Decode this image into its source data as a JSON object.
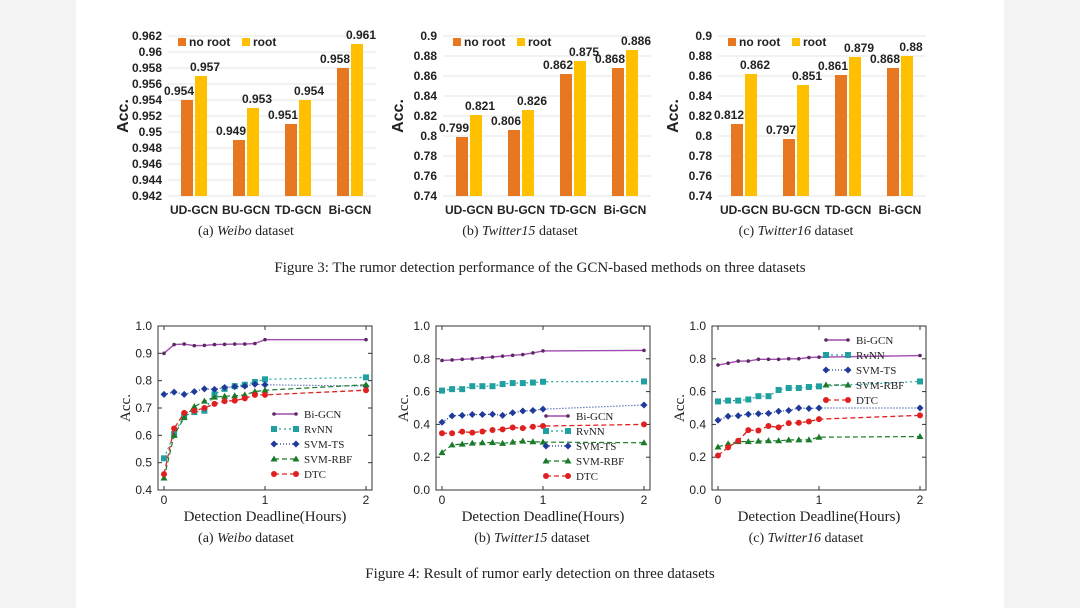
{
  "figure3": {
    "caption": "Figure 3: The rumor detection performance of the GCN-based methods on three datasets",
    "subcaptions": [
      {
        "prefix": "(a) ",
        "name": "Weibo",
        "suffix": " dataset"
      },
      {
        "prefix": "(b) ",
        "name": "Twitter15",
        "suffix": " dataset"
      },
      {
        "prefix": "(c) ",
        "name": "Twitter16",
        "suffix": " dataset"
      }
    ]
  },
  "figure4": {
    "caption": "Figure 4: Result of rumor early detection on three datasets",
    "subcaptions": [
      {
        "prefix": "(a) ",
        "name": "Weibo",
        "suffix": " dataset"
      },
      {
        "prefix": "(b) ",
        "name": "Twitter15",
        "suffix": " dataset"
      },
      {
        "prefix": "(c) ",
        "name": "Twitter16",
        "suffix": " dataset"
      }
    ]
  },
  "colors": {
    "no_root": "#e87722",
    "root": "#ffc000",
    "bigcn": "#a24bb0",
    "rvnn": "#20a0a0",
    "svmts": "#1f3b9a",
    "svmrbf": "#1a7a2a",
    "dtc": "#e02020"
  },
  "chart_data": [
    {
      "type": "bar",
      "title": "(a) Weibo dataset",
      "ylabel": "Acc.",
      "xlabel": "",
      "categories": [
        "UD-GCN",
        "BU-GCN",
        "TD-GCN",
        "Bi-GCN"
      ],
      "ylim": [
        0.942,
        0.962
      ],
      "yticks": [
        "0.942",
        "0.944",
        "0.946",
        "0.948",
        "0.95",
        "0.952",
        "0.954",
        "0.956",
        "0.958",
        "0.96",
        "0.962"
      ],
      "legend": "top-left",
      "series": [
        {
          "name": "no root",
          "values": [
            0.954,
            0.949,
            0.951,
            0.958
          ],
          "labels": [
            "0.954",
            "0.949",
            "0.951",
            "0.958"
          ]
        },
        {
          "name": "root",
          "values": [
            0.957,
            0.953,
            0.954,
            0.961
          ],
          "labels": [
            "0.957",
            "0.953",
            "0.954",
            "0.961"
          ]
        }
      ]
    },
    {
      "type": "bar",
      "title": "(b) Twitter15 dataset",
      "ylabel": "Acc.",
      "xlabel": "",
      "categories": [
        "UD-GCN",
        "BU-GCN",
        "TD-GCN",
        "Bi-GCN"
      ],
      "ylim": [
        0.74,
        0.9
      ],
      "yticks": [
        "0.74",
        "0.76",
        "0.78",
        "0.8",
        "0.82",
        "0.84",
        "0.86",
        "0.88",
        "0.9"
      ],
      "legend": "top-left",
      "series": [
        {
          "name": "no root",
          "values": [
            0.799,
            0.806,
            0.862,
            0.868
          ],
          "labels": [
            "0.799",
            "0.806",
            "0.862",
            "0.868"
          ]
        },
        {
          "name": "root",
          "values": [
            0.821,
            0.826,
            0.875,
            0.886
          ],
          "labels": [
            "0.821",
            "0.826",
            "0.875",
            "0.886"
          ]
        }
      ]
    },
    {
      "type": "bar",
      "title": "(c) Twitter16 dataset",
      "ylabel": "Acc.",
      "xlabel": "",
      "categories": [
        "UD-GCN",
        "BU-GCN",
        "TD-GCN",
        "Bi-GCN"
      ],
      "ylim": [
        0.74,
        0.9
      ],
      "yticks": [
        "0.74",
        "0.76",
        "0.78",
        "0.8",
        "0.82",
        "0.84",
        "0.86",
        "0.88",
        "0.9"
      ],
      "legend": "top-left",
      "series": [
        {
          "name": "no root",
          "values": [
            0.812,
            0.797,
            0.861,
            0.868
          ],
          "labels": [
            "0.812",
            "0.797",
            "0.861",
            "0.868"
          ]
        },
        {
          "name": "root",
          "values": [
            0.862,
            0.851,
            0.879,
            0.88
          ],
          "labels": [
            "0.862",
            "0.851",
            "0.879",
            "0.88"
          ]
        }
      ]
    },
    {
      "type": "line",
      "title": "(a) Weibo dataset",
      "xlabel": "Detection Deadline(Hours)",
      "ylabel": "Acc.",
      "xlim": [
        0,
        2
      ],
      "ylim": [
        0.4,
        1.0
      ],
      "xticks": [
        "0",
        "1",
        "2"
      ],
      "yticks": [
        "0.4",
        "0.5",
        "0.6",
        "0.7",
        "0.8",
        "0.9",
        "1.0"
      ],
      "legend": "center-right",
      "x": [
        0,
        0.1,
        0.2,
        0.3,
        0.4,
        0.5,
        0.6,
        0.7,
        0.8,
        0.9,
        1.0,
        2.0
      ],
      "series": [
        {
          "name": "Bi-GCN",
          "values": [
            0.9,
            0.932,
            0.934,
            0.928,
            0.929,
            0.932,
            0.933,
            0.934,
            0.934,
            0.936,
            0.95,
            0.95
          ]
        },
        {
          "name": "RvNN",
          "values": [
            0.516,
            0.605,
            0.672,
            0.685,
            0.69,
            0.75,
            0.77,
            0.78,
            0.785,
            0.795,
            0.805,
            0.812
          ]
        },
        {
          "name": "SVM-TS",
          "values": [
            0.75,
            0.758,
            0.75,
            0.76,
            0.77,
            0.768,
            0.775,
            0.778,
            0.78,
            0.787,
            0.785,
            0.78
          ]
        },
        {
          "name": "SVM-RBF",
          "values": [
            0.444,
            0.6,
            0.665,
            0.705,
            0.725,
            0.74,
            0.743,
            0.745,
            0.748,
            0.76,
            0.765,
            0.785
          ]
        },
        {
          "name": "DTC",
          "values": [
            0.458,
            0.625,
            0.682,
            0.69,
            0.7,
            0.715,
            0.725,
            0.727,
            0.735,
            0.748,
            0.748,
            0.765
          ]
        }
      ]
    },
    {
      "type": "line",
      "title": "(b) Twitter15 dataset",
      "xlabel": "Detection Deadline(Hours)",
      "ylabel": "Acc.",
      "xlim": [
        0,
        2
      ],
      "ylim": [
        0.0,
        1.0
      ],
      "xticks": [
        "0",
        "1",
        "2"
      ],
      "yticks": [
        "0.0",
        "0.2",
        "0.4",
        "0.6",
        "0.8",
        "1.0"
      ],
      "legend": "lower-right",
      "x": [
        0,
        0.1,
        0.2,
        0.3,
        0.4,
        0.5,
        0.6,
        0.7,
        0.8,
        0.9,
        1.0,
        2.0
      ],
      "series": [
        {
          "name": "Bi-GCN",
          "values": [
            0.79,
            0.793,
            0.797,
            0.8,
            0.806,
            0.811,
            0.816,
            0.821,
            0.826,
            0.836,
            0.848,
            0.851
          ]
        },
        {
          "name": "RvNN",
          "values": [
            0.606,
            0.615,
            0.615,
            0.633,
            0.633,
            0.633,
            0.646,
            0.652,
            0.652,
            0.655,
            0.66,
            0.662
          ]
        },
        {
          "name": "SVM-TS",
          "values": [
            0.413,
            0.452,
            0.455,
            0.46,
            0.46,
            0.462,
            0.455,
            0.471,
            0.482,
            0.485,
            0.493,
            0.518
          ]
        },
        {
          "name": "SVM-RBF",
          "values": [
            0.228,
            0.275,
            0.28,
            0.286,
            0.288,
            0.29,
            0.284,
            0.292,
            0.298,
            0.294,
            0.292,
            0.288
          ]
        },
        {
          "name": "DTC",
          "values": [
            0.346,
            0.346,
            0.356,
            0.35,
            0.357,
            0.366,
            0.37,
            0.381,
            0.377,
            0.386,
            0.39,
            0.4
          ]
        }
      ]
    },
    {
      "type": "line",
      "title": "(c) Twitter16 dataset",
      "xlabel": "Detection Deadline(Hours)",
      "ylabel": "Acc.",
      "xlim": [
        0,
        2
      ],
      "ylim": [
        0.0,
        1.0
      ],
      "xticks": [
        "0",
        "1",
        "2"
      ],
      "yticks": [
        "0.0",
        "0.2",
        "0.4",
        "0.6",
        "0.8",
        "1.0"
      ],
      "legend": "top-right",
      "x": [
        0,
        0.1,
        0.2,
        0.3,
        0.4,
        0.5,
        0.6,
        0.7,
        0.8,
        0.9,
        1.0,
        2.0
      ],
      "series": [
        {
          "name": "Bi-GCN",
          "values": [
            0.762,
            0.773,
            0.786,
            0.786,
            0.797,
            0.797,
            0.797,
            0.8,
            0.8,
            0.808,
            0.81,
            0.82
          ]
        },
        {
          "name": "RvNN",
          "values": [
            0.54,
            0.545,
            0.545,
            0.552,
            0.572,
            0.572,
            0.61,
            0.622,
            0.622,
            0.628,
            0.632,
            0.662
          ]
        },
        {
          "name": "SVM-TS",
          "values": [
            0.425,
            0.45,
            0.453,
            0.462,
            0.465,
            0.467,
            0.48,
            0.485,
            0.5,
            0.497,
            0.5,
            0.5
          ]
        },
        {
          "name": "SVM-RBF",
          "values": [
            0.262,
            0.282,
            0.295,
            0.295,
            0.298,
            0.3,
            0.3,
            0.305,
            0.306,
            0.306,
            0.322,
            0.326
          ]
        },
        {
          "name": "DTC",
          "values": [
            0.21,
            0.26,
            0.3,
            0.365,
            0.363,
            0.39,
            0.382,
            0.408,
            0.41,
            0.418,
            0.432,
            0.455
          ]
        }
      ]
    }
  ]
}
